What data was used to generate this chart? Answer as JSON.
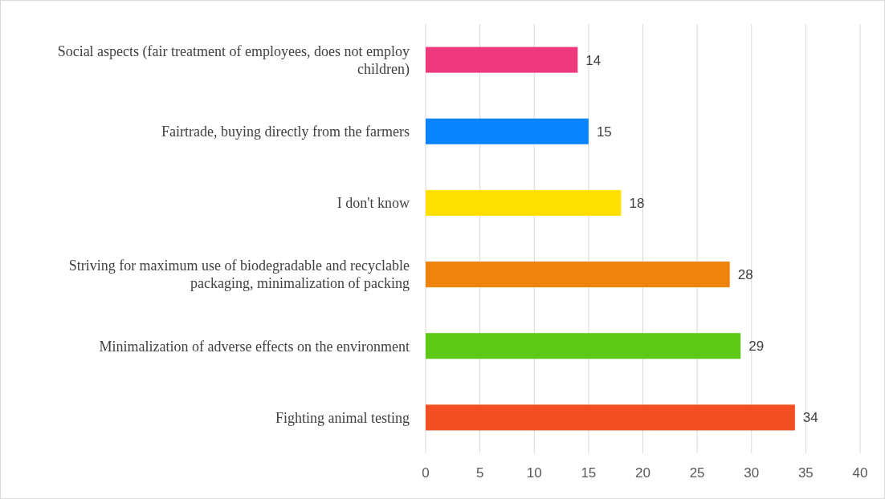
{
  "chart_data": {
    "type": "bar",
    "orientation": "horizontal",
    "categories": [
      "Social aspects (fair treatment of employees, does not employ children)",
      "Fairtrade, buying directly from the farmers",
      "I don't know",
      "Striving for maximum use of biodegradable and recyclable packaging, minimalization of packing",
      "Minimalization of adverse effects on the environment",
      "Fighting animal testing"
    ],
    "values": [
      14,
      15,
      18,
      28,
      29,
      34
    ],
    "colors": [
      "#ee3a7c",
      "#0a84ff",
      "#ffe000",
      "#ee840e",
      "#5ec816",
      "#f25022"
    ],
    "xlim": [
      0,
      40
    ],
    "xticks": [
      0,
      5,
      10,
      15,
      20,
      25,
      30,
      35,
      40
    ],
    "grid": "x",
    "data_labels": true
  }
}
